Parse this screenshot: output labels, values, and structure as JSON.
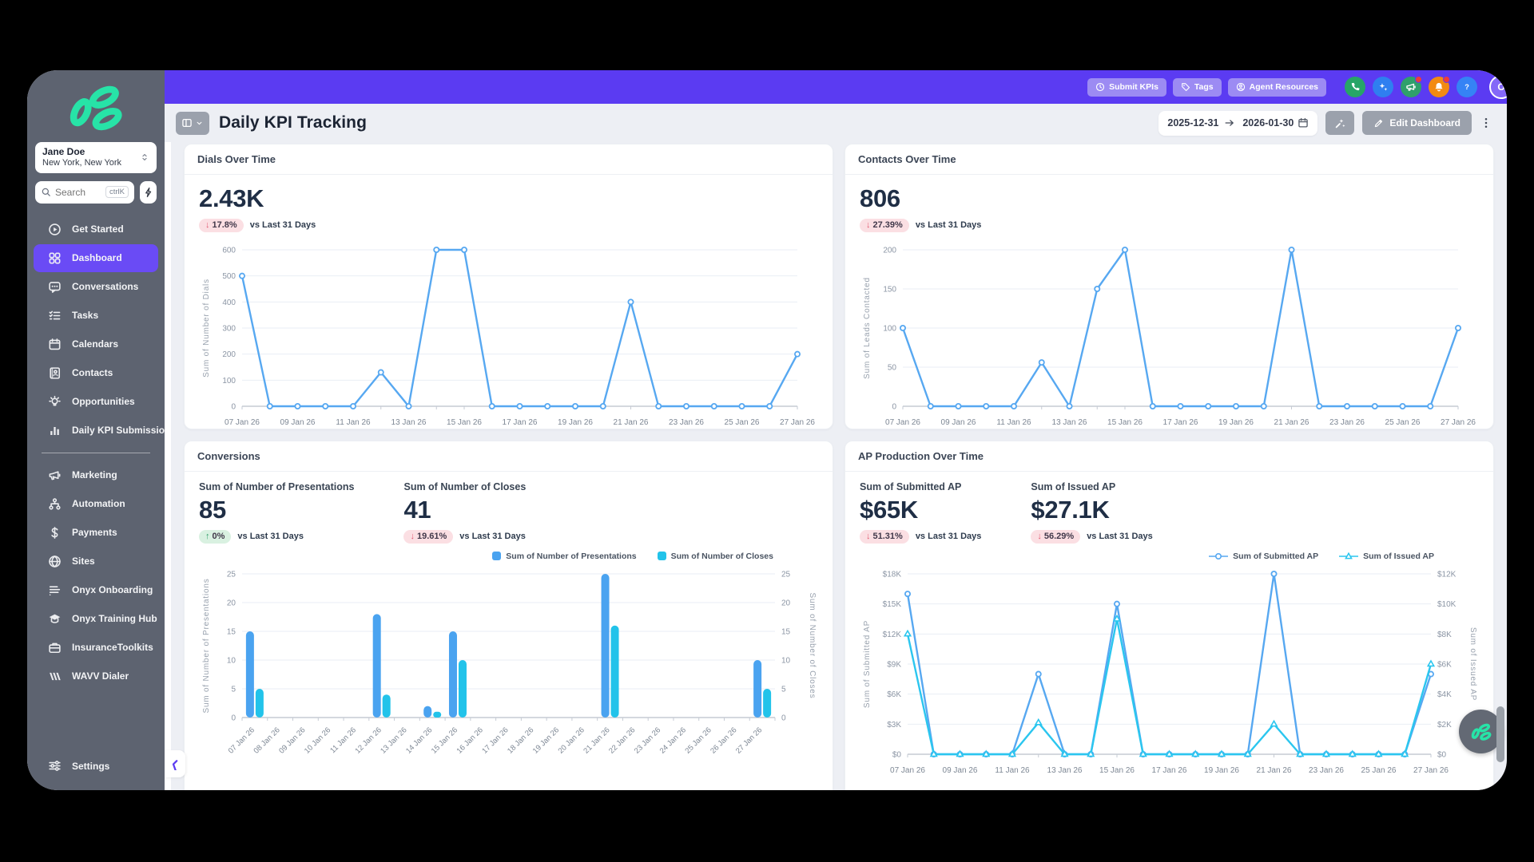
{
  "colors": {
    "accent_purple": "#5b3bf2",
    "sidebar_gray": "#5d6370",
    "page_bg": "#edeff4",
    "line_blue": "#57a8f1",
    "line_cyan": "#2bc6ef",
    "badge_pink_bg": "#fbdfe3",
    "badge_green_bg": "#d9f1e1",
    "logo_teal": "#27e3a7"
  },
  "topbar": {
    "pill_buttons": [
      {
        "label": "Submit KPIs",
        "icon": "clock"
      },
      {
        "label": "Tags",
        "icon": "tag"
      },
      {
        "label": "Agent Resources",
        "icon": "person"
      }
    ],
    "circle_buttons": [
      {
        "name": "phone",
        "color": "#27a567",
        "badge": false
      },
      {
        "name": "sparkles",
        "color": "#2f7ff0",
        "badge": false
      },
      {
        "name": "megaphone",
        "color": "#2fa06b",
        "badge": true
      },
      {
        "name": "bell",
        "color": "#f28a12",
        "badge": true
      },
      {
        "name": "question",
        "color": "#3583f5",
        "badge": false
      }
    ],
    "avatar_initial": "O"
  },
  "header": {
    "title": "Daily KPI Tracking",
    "date_start": "2025-12-31",
    "date_end": "2026-01-30",
    "edit_label": "Edit Dashboard"
  },
  "sidebar": {
    "user_name": "Jane Doe",
    "user_location": "New York, New York",
    "search_placeholder": "Search",
    "search_shortcut": "ctrlK",
    "nav_primary": [
      {
        "label": "Get Started",
        "icon": "play",
        "active": false
      },
      {
        "label": "Dashboard",
        "icon": "grid",
        "active": true
      },
      {
        "label": "Conversations",
        "icon": "chat",
        "active": false
      },
      {
        "label": "Tasks",
        "icon": "tasks",
        "active": false
      },
      {
        "label": "Calendars",
        "icon": "calendar",
        "active": false
      },
      {
        "label": "Contacts",
        "icon": "contacts",
        "active": false
      },
      {
        "label": "Opportunities",
        "icon": "bulb",
        "active": false
      },
      {
        "label": "Daily KPI Submissions",
        "icon": "bars",
        "active": false
      }
    ],
    "nav_secondary": [
      {
        "label": "Marketing",
        "icon": "megaphone",
        "active": false
      },
      {
        "label": "Automation",
        "icon": "automation",
        "active": false
      },
      {
        "label": "Payments",
        "icon": "dollar",
        "active": false
      },
      {
        "label": "Sites",
        "icon": "globe",
        "active": false
      },
      {
        "label": "Onyx Onboarding",
        "icon": "list",
        "active": false
      },
      {
        "label": "Onyx Training Hub",
        "icon": "training",
        "active": false
      },
      {
        "label": "InsuranceToolkits",
        "icon": "briefcase",
        "active": false
      },
      {
        "label": "WAVV Dialer",
        "icon": "wavv",
        "active": false
      }
    ],
    "settings_label": "Settings"
  },
  "chart_data": [
    {
      "type": "line",
      "title": "Dials Over Time",
      "metrics": [
        {
          "label": "",
          "value": "2.43K",
          "delta": "17.8%",
          "direction": "down",
          "caption": "vs Last 31 Days"
        }
      ],
      "ylabel": "Sum of Number of Dials",
      "ymax": 600,
      "ytick_values": [
        0,
        100,
        200,
        300,
        400,
        500,
        600
      ],
      "ytick_labels": [
        "0",
        "100",
        "200",
        "300",
        "400",
        "500",
        "600"
      ],
      "x_label_every": 2,
      "categories": [
        "07 Jan 26",
        "08 Jan 26",
        "09 Jan 26",
        "10 Jan 26",
        "11 Jan 26",
        "12 Jan 26",
        "13 Jan 26",
        "14 Jan 26",
        "15 Jan 26",
        "16 Jan 26",
        "17 Jan 26",
        "18 Jan 26",
        "19 Jan 26",
        "20 Jan 26",
        "21 Jan 26",
        "22 Jan 26",
        "23 Jan 26",
        "24 Jan 26",
        "25 Jan 26",
        "26 Jan 26",
        "27 Jan 26"
      ],
      "series": [
        {
          "name": "Sum of Number of Dials",
          "color": "#57a8f1",
          "marker": "circle",
          "axis": "left",
          "values": [
            500,
            0,
            0,
            0,
            0,
            130,
            0,
            600,
            600,
            0,
            0,
            0,
            0,
            0,
            400,
            0,
            0,
            0,
            0,
            0,
            200
          ]
        }
      ]
    },
    {
      "type": "line",
      "title": "Contacts Over Time",
      "metrics": [
        {
          "label": "",
          "value": "806",
          "delta": "27.39%",
          "direction": "down",
          "caption": "vs Last 31 Days"
        }
      ],
      "ylabel": "Sum of Leads Contacted",
      "ymax": 200,
      "ytick_values": [
        0,
        50,
        100,
        150,
        200
      ],
      "ytick_labels": [
        "0",
        "50",
        "100",
        "150",
        "200"
      ],
      "x_label_every": 2,
      "categories": [
        "07 Jan 26",
        "08 Jan 26",
        "09 Jan 26",
        "10 Jan 26",
        "11 Jan 26",
        "12 Jan 26",
        "13 Jan 26",
        "14 Jan 26",
        "15 Jan 26",
        "16 Jan 26",
        "17 Jan 26",
        "18 Jan 26",
        "19 Jan 26",
        "20 Jan 26",
        "21 Jan 26",
        "22 Jan 26",
        "23 Jan 26",
        "24 Jan 26",
        "25 Jan 26",
        "26 Jan 26",
        "27 Jan 26"
      ],
      "series": [
        {
          "name": "Sum of Leads Contacted",
          "color": "#57a8f1",
          "marker": "circle",
          "axis": "left",
          "values": [
            100,
            0,
            0,
            0,
            0,
            56,
            0,
            150,
            200,
            0,
            0,
            0,
            0,
            0,
            200,
            0,
            0,
            0,
            0,
            0,
            100
          ]
        }
      ]
    },
    {
      "type": "bar",
      "title": "Conversions",
      "metrics": [
        {
          "label": "Sum of Number of Presentations",
          "value": "85",
          "delta": "0%",
          "direction": "up",
          "caption": "vs Last 31 Days"
        },
        {
          "label": "Sum of Number of Closes",
          "value": "41",
          "delta": "19.61%",
          "direction": "down",
          "caption": "vs Last 31 Days"
        }
      ],
      "legend": [
        "Sum of Number of Presentations",
        "Sum of Number of Closes"
      ],
      "ylabel_left": "Sum of Number of Presentations",
      "ylabel_right": "Sum of Number of Closes",
      "ymax": 25,
      "ytick_values": [
        0,
        5,
        10,
        15,
        20,
        25
      ],
      "ytick_labels": [
        "0",
        "5",
        "10",
        "15",
        "20",
        "25"
      ],
      "categories": [
        "07 Jan 26",
        "08 Jan 26",
        "09 Jan 26",
        "10 Jan 26",
        "11 Jan 26",
        "12 Jan 26",
        "13 Jan 26",
        "14 Jan 26",
        "15 Jan 26",
        "16 Jan 26",
        "17 Jan 26",
        "18 Jan 26",
        "19 Jan 26",
        "20 Jan 26",
        "21 Jan 26",
        "22 Jan 26",
        "23 Jan 26",
        "24 Jan 26",
        "25 Jan 26",
        "26 Jan 26",
        "27 Jan 26"
      ],
      "series": [
        {
          "name": "Sum of Number of Presentations",
          "color": "#4aa3f0",
          "values": [
            15,
            0,
            0,
            0,
            0,
            18,
            0,
            2,
            15,
            0,
            0,
            0,
            0,
            0,
            25,
            0,
            0,
            0,
            0,
            0,
            10
          ]
        },
        {
          "name": "Sum of Number of Closes",
          "color": "#22c3ea",
          "values": [
            5,
            0,
            0,
            0,
            0,
            4,
            0,
            1,
            10,
            0,
            0,
            0,
            0,
            0,
            16,
            0,
            0,
            0,
            0,
            0,
            5
          ]
        }
      ]
    },
    {
      "type": "line",
      "title": "AP Production Over Time",
      "metrics": [
        {
          "label": "Sum of Submitted AP",
          "value": "$65K",
          "delta": "51.31%",
          "direction": "down",
          "caption": "vs Last 31 Days"
        },
        {
          "label": "Sum of Issued AP",
          "value": "$27.1K",
          "delta": "56.29%",
          "direction": "down",
          "caption": "vs Last 31 Days"
        }
      ],
      "legend": [
        "Sum of Submitted AP",
        "Sum of Issued AP"
      ],
      "ylabel_left": "Sum of Submitted AP",
      "ylabel_right": "Sum of Issued AP",
      "ymax_left": 18000,
      "ytick_values_left": [
        0,
        3000,
        6000,
        9000,
        12000,
        15000,
        18000
      ],
      "ytick_labels_left": [
        "$0",
        "$3K",
        "$6K",
        "$9K",
        "$12K",
        "$15K",
        "$18K"
      ],
      "ymax_right": 12000,
      "ytick_values_right": [
        0,
        2000,
        4000,
        6000,
        8000,
        10000,
        12000
      ],
      "ytick_labels_right": [
        "$0",
        "$2K",
        "$4K",
        "$6K",
        "$8K",
        "$10K",
        "$12K"
      ],
      "x_label_every": 2,
      "categories": [
        "07 Jan 26",
        "08 Jan 26",
        "09 Jan 26",
        "10 Jan 26",
        "11 Jan 26",
        "12 Jan 26",
        "13 Jan 26",
        "14 Jan 26",
        "15 Jan 26",
        "16 Jan 26",
        "17 Jan 26",
        "18 Jan 26",
        "19 Jan 26",
        "20 Jan 26",
        "21 Jan 26",
        "22 Jan 26",
        "23 Jan 26",
        "24 Jan 26",
        "25 Jan 26",
        "26 Jan 26",
        "27 Jan 26"
      ],
      "series": [
        {
          "name": "Sum of Submitted AP",
          "color": "#57a8f1",
          "marker": "circle",
          "axis": "left",
          "values": [
            16000,
            0,
            0,
            0,
            0,
            8000,
            0,
            0,
            15000,
            0,
            0,
            0,
            0,
            0,
            18000,
            0,
            0,
            0,
            0,
            0,
            8000
          ]
        },
        {
          "name": "Sum of Issued AP",
          "color": "#2bc6ef",
          "marker": "triangle",
          "axis": "right",
          "values": [
            8000,
            0,
            0,
            0,
            0,
            2100,
            0,
            0,
            9000,
            0,
            0,
            0,
            0,
            0,
            2000,
            0,
            0,
            0,
            0,
            0,
            6000
          ]
        }
      ]
    }
  ],
  "floating": {
    "collapse_tooltip": "Collapse sidebar"
  }
}
